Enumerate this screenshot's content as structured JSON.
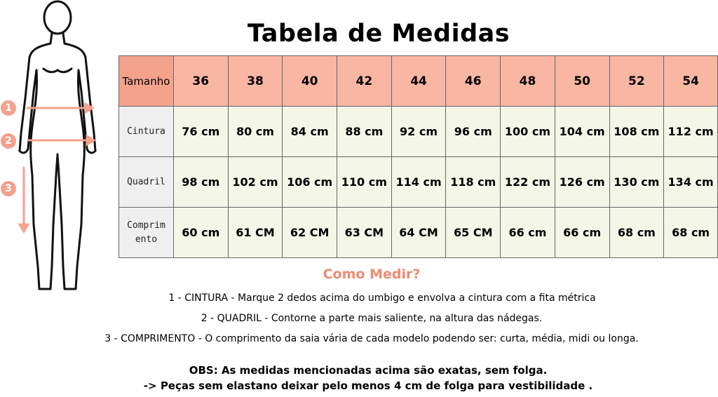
{
  "title": "Tabela de Medidas",
  "table": {
    "header_label": "Tamanho",
    "sizes": [
      "36",
      "38",
      "40",
      "42",
      "44",
      "46",
      "48",
      "50",
      "52",
      "54"
    ],
    "rows": [
      {
        "label": "Cintura",
        "values": [
          "76 cm",
          "80 cm",
          "84 cm",
          "88 cm",
          "92 cm",
          "96 cm",
          "100 cm",
          "104 cm",
          "108 cm",
          "112 cm"
        ]
      },
      {
        "label": "Quadril",
        "values": [
          "98 cm",
          "102 cm",
          "106 cm",
          "110 cm",
          "114 cm",
          "118 cm",
          "122 cm",
          "126 cm",
          "130 cm",
          "134 cm"
        ]
      },
      {
        "label": "Comprimento",
        "label_line1": "Comprim",
        "label_line2": "ento",
        "values": [
          "60 cm",
          "61 CM",
          "62 CM",
          "63 CM",
          "64 CM",
          "65 CM",
          "66 cm",
          "66 cm",
          "68 cm",
          "68 cm"
        ]
      }
    ]
  },
  "figure": {
    "markers": [
      "1",
      "2",
      "3"
    ],
    "accent_color": "#f4a28c"
  },
  "how_to_measure": {
    "title": "Como Medir?",
    "items": [
      "1 - CINTURA - Marque 2 dedos acima do umbigo e envolva a cintura com a fita métrica",
      "2 - QUADRIL -  Contorne a parte mais saliente, na altura das nádegas.",
      "3 - COMPRIMENTO - O comprimento da saia vária de  cada modelo podendo ser: curta, média, midi ou longa."
    ]
  },
  "obs": {
    "line1": "OBS: As medidas mencionadas acima são exatas, sem folga.",
    "line2": "-> Peças sem elastano deixar pelo menos 4 cm de folga para vestibilidade ."
  },
  "colors": {
    "header": "#f9b6a2",
    "header_label": "#f4a28c",
    "cell": "#f4f6e8",
    "row_label": "#efefef",
    "accent_text": "#ee8b70"
  }
}
